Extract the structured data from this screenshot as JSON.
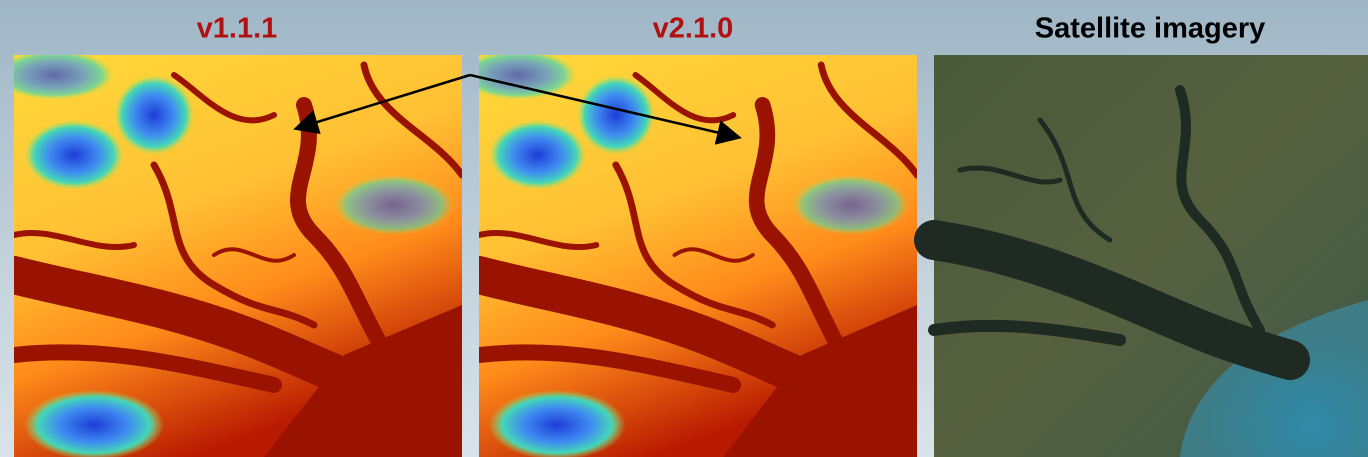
{
  "panels": [
    {
      "title": "v1.1.1"
    },
    {
      "title": "v2.1.0"
    },
    {
      "title": "Satellite imagery"
    }
  ]
}
